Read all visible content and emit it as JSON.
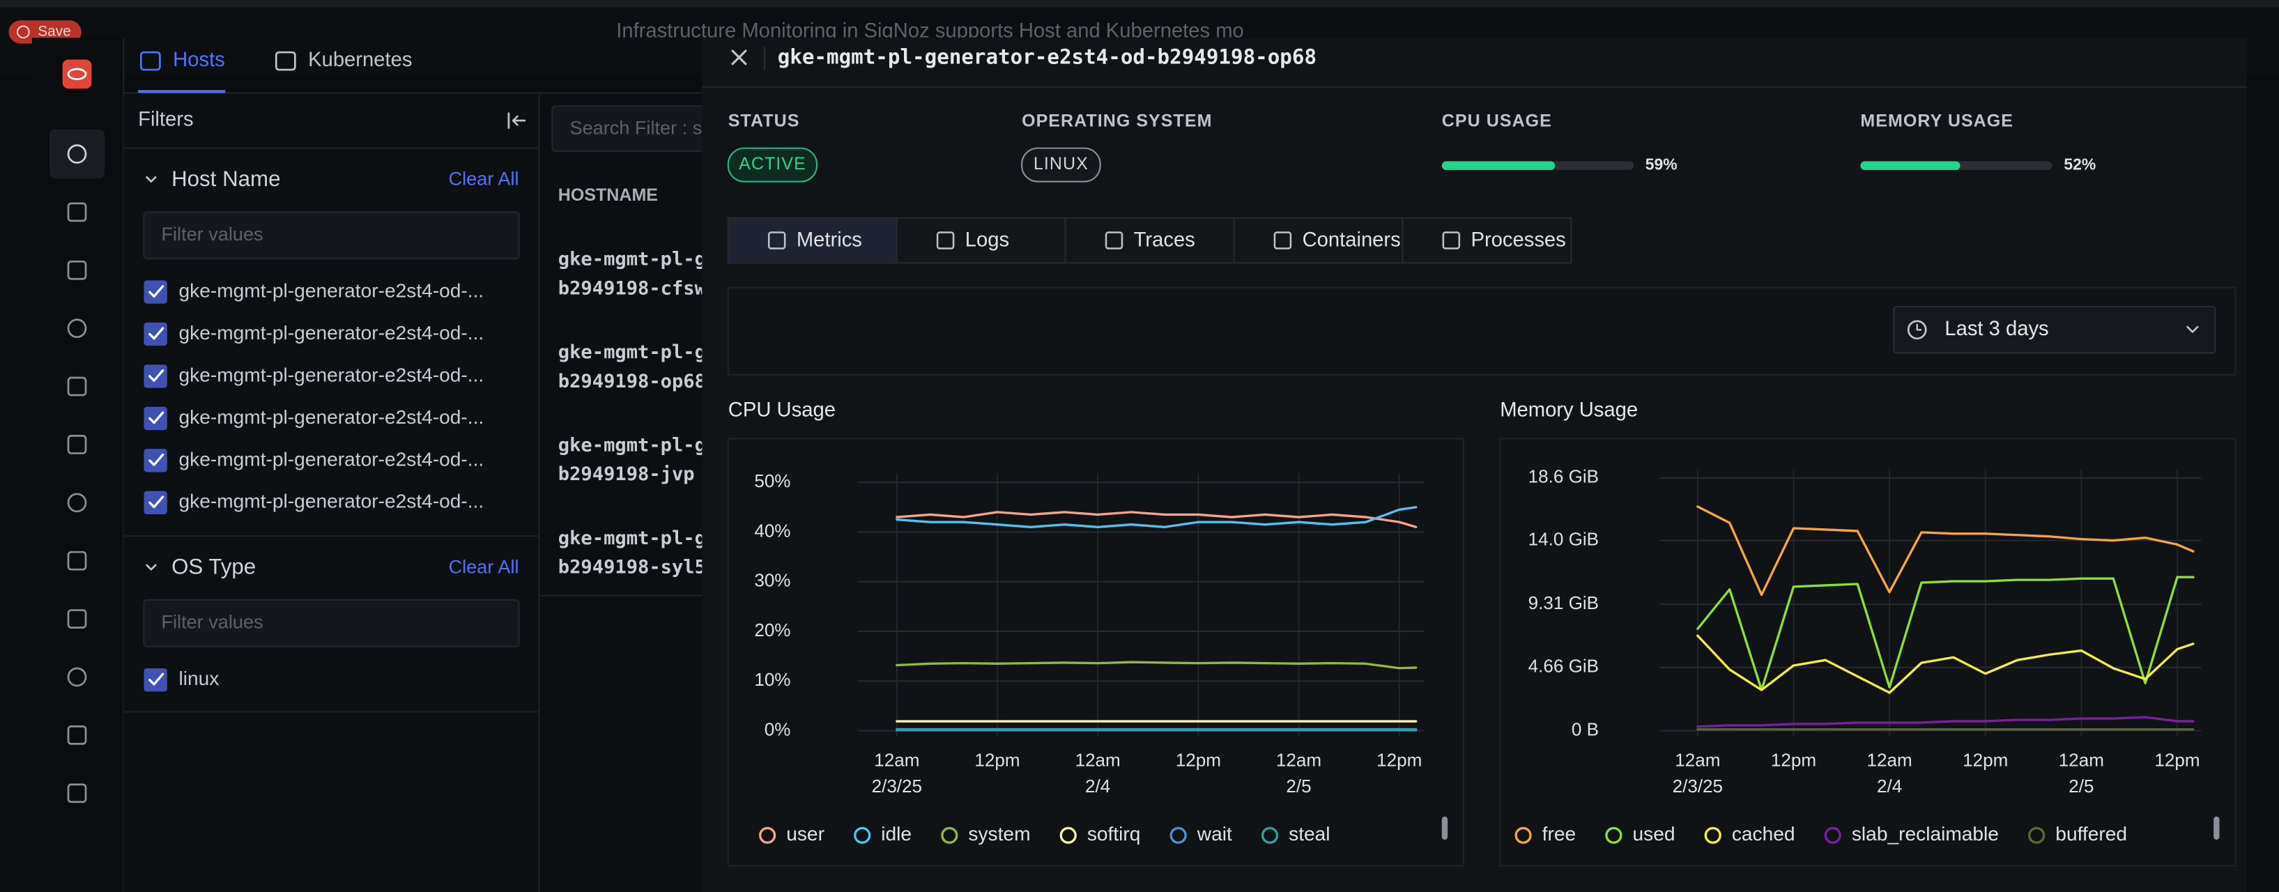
{
  "top_bar": {
    "save": "Save",
    "banner": "Infrastructure Monitoring in SigNoz supports Host and Kubernetes mo"
  },
  "nav": {
    "tabs": [
      "Hosts",
      "Kubernetes"
    ]
  },
  "filters": {
    "title": "Filters",
    "sections": [
      {
        "title": "Host Name",
        "clear": "Clear All",
        "placeholder": "Filter values",
        "items": [
          "gke-mgmt-pl-generator-e2st4-od-...",
          "gke-mgmt-pl-generator-e2st4-od-...",
          "gke-mgmt-pl-generator-e2st4-od-...",
          "gke-mgmt-pl-generator-e2st4-od-...",
          "gke-mgmt-pl-generator-e2st4-od-...",
          "gke-mgmt-pl-generator-e2st4-od-..."
        ]
      },
      {
        "title": "OS Type",
        "clear": "Clear All",
        "placeholder": "Filter values",
        "items": [
          "linux"
        ]
      }
    ]
  },
  "table": {
    "search": "Search Filter : s",
    "header": "HOSTNAME",
    "rows": [
      [
        "gke-mgmt-pl-g",
        "b2949198-cfsw"
      ],
      [
        "gke-mgmt-pl-g",
        "b2949198-op68"
      ],
      [
        "gke-mgmt-pl-g",
        "b2949198-jvp"
      ],
      [
        "gke-mgmt-pl-g",
        "b2949198-syl5"
      ]
    ]
  },
  "drawer": {
    "title": "gke-mgmt-pl-generator-e2st4-od-b2949198-op68",
    "status": {
      "label": "STATUS",
      "value": "ACTIVE"
    },
    "os": {
      "label": "OPERATING SYSTEM",
      "value": "LINUX"
    },
    "cpu_usage": {
      "label": "CPU USAGE",
      "value": 59,
      "value_label": "59%"
    },
    "memory_usage": {
      "label": "MEMORY USAGE",
      "value": 52,
      "value_label": "52%"
    },
    "tabs": [
      "Metrics",
      "Logs",
      "Traces",
      "Containers",
      "Processes"
    ],
    "time_range": "Last 3 days"
  },
  "chart_data": [
    {
      "type": "line",
      "title": "CPU Usage",
      "x": [
        "2025-02-03T00:00",
        "2025-02-03T04:00",
        "2025-02-03T08:00",
        "2025-02-03T12:00",
        "2025-02-03T16:00",
        "2025-02-03T20:00",
        "2025-02-04T00:00",
        "2025-02-04T04:00",
        "2025-02-04T08:00",
        "2025-02-04T12:00",
        "2025-02-04T16:00",
        "2025-02-04T20:00",
        "2025-02-05T00:00",
        "2025-02-05T04:00",
        "2025-02-05T08:00",
        "2025-02-05T12:00",
        "2025-02-05T14:00"
      ],
      "xlim": [
        "2025-02-02T20:00",
        "2025-02-05T15:00"
      ],
      "xticks": [
        {
          "value": "2025-02-03T00:00",
          "label": "12am 2/3/25"
        },
        {
          "value": "2025-02-03T12:00",
          "label": "12pm"
        },
        {
          "value": "2025-02-04T00:00",
          "label": "12am 2/4"
        },
        {
          "value": "2025-02-04T12:00",
          "label": "12pm"
        },
        {
          "value": "2025-02-05T00:00",
          "label": "12am 2/5"
        },
        {
          "value": "2025-02-05T12:00",
          "label": "12pm"
        }
      ],
      "ylim": [
        0,
        50
      ],
      "yticks": [
        {
          "value": 0,
          "label": "0%"
        },
        {
          "value": 10,
          "label": "10%"
        },
        {
          "value": 20,
          "label": "20%"
        },
        {
          "value": 30,
          "label": "30%"
        },
        {
          "value": 40,
          "label": "40%"
        },
        {
          "value": 50,
          "label": "50%"
        }
      ],
      "grid": true,
      "series": [
        {
          "name": "user",
          "color": "#f4a58a",
          "values": [
            43,
            43.5,
            43,
            44,
            43.5,
            44,
            43.5,
            44,
            43.5,
            43.5,
            43,
            43.5,
            43,
            43.5,
            43,
            42,
            41
          ]
        },
        {
          "name": "idle",
          "color": "#4fc3f7",
          "values": [
            42.5,
            42,
            42,
            41.5,
            41,
            41.5,
            41,
            41.5,
            41,
            42,
            42,
            41.5,
            42,
            41.5,
            42,
            44.5,
            45
          ]
        },
        {
          "name": "system",
          "color": "#8fbc3a",
          "values": [
            13.2,
            13.5,
            13.6,
            13.5,
            13.6,
            13.7,
            13.6,
            13.8,
            13.7,
            13.6,
            13.7,
            13.6,
            13.5,
            13.6,
            13.5,
            12.6,
            12.7
          ]
        },
        {
          "name": "softirq",
          "color": "#fff59d",
          "values": [
            1.9,
            1.9,
            1.9,
            1.9,
            1.9,
            1.9,
            1.9,
            1.9,
            1.9,
            1.9,
            1.9,
            1.9,
            1.9,
            1.9,
            1.9,
            1.9,
            1.9
          ]
        },
        {
          "name": "wait",
          "color": "#4a90d9",
          "values": [
            0.1,
            0.1,
            0.1,
            0.1,
            0.1,
            0.1,
            0.1,
            0.1,
            0.1,
            0.1,
            0.1,
            0.1,
            0.1,
            0.1,
            0.1,
            0.1,
            0.1
          ]
        },
        {
          "name": "steal",
          "color": "#26a69a",
          "values": [
            0.3,
            0.3,
            0.3,
            0.3,
            0.3,
            0.3,
            0.3,
            0.3,
            0.3,
            0.3,
            0.3,
            0.3,
            0.3,
            0.3,
            0.3,
            0.3,
            0.3
          ]
        }
      ]
    },
    {
      "type": "line",
      "title": "Memory Usage",
      "x": [
        "2025-02-03T00:00",
        "2025-02-03T04:00",
        "2025-02-03T08:00",
        "2025-02-03T12:00",
        "2025-02-03T16:00",
        "2025-02-03T20:00",
        "2025-02-04T00:00",
        "2025-02-04T04:00",
        "2025-02-04T08:00",
        "2025-02-04T12:00",
        "2025-02-04T16:00",
        "2025-02-04T20:00",
        "2025-02-05T00:00",
        "2025-02-05T04:00",
        "2025-02-05T08:00",
        "2025-02-05T12:00",
        "2025-02-05T14:00"
      ],
      "xlim": [
        "2025-02-02T20:00",
        "2025-02-05T15:00"
      ],
      "xticks": [
        {
          "value": "2025-02-03T00:00",
          "label": "12am 2/3/25"
        },
        {
          "value": "2025-02-03T12:00",
          "label": "12pm"
        },
        {
          "value": "2025-02-04T00:00",
          "label": "12am 2/4"
        },
        {
          "value": "2025-02-04T12:00",
          "label": "12pm"
        },
        {
          "value": "2025-02-05T00:00",
          "label": "12am 2/5"
        },
        {
          "value": "2025-02-05T12:00",
          "label": "12pm"
        }
      ],
      "ylim": [
        0,
        18.6
      ],
      "yticks": [
        {
          "value": 0,
          "label": "0 B"
        },
        {
          "value": 4.66,
          "label": "4.66 GiB"
        },
        {
          "value": 9.31,
          "label": "9.31 GiB"
        },
        {
          "value": 14.0,
          "label": "14.0 GiB"
        },
        {
          "value": 18.6,
          "label": "18.6 GiB"
        }
      ],
      "grid": true,
      "series": [
        {
          "name": "free",
          "color": "#f5a83c",
          "values": [
            16.5,
            15.3,
            10.0,
            14.9,
            14.8,
            14.7,
            10.2,
            14.6,
            14.5,
            14.5,
            14.4,
            14.3,
            14.1,
            14.0,
            14.2,
            13.7,
            13.2
          ]
        },
        {
          "name": "used",
          "color": "#8ae22e",
          "values": [
            7.5,
            10.4,
            3.0,
            10.6,
            10.7,
            10.8,
            3.2,
            10.9,
            11.0,
            11.0,
            11.1,
            11.1,
            11.2,
            11.2,
            3.5,
            11.3,
            11.3
          ]
        },
        {
          "name": "cached",
          "color": "#f5f03c",
          "values": [
            7.0,
            4.5,
            3.0,
            4.8,
            5.2,
            4.0,
            2.8,
            5.0,
            5.4,
            4.2,
            5.2,
            5.6,
            5.9,
            4.6,
            3.8,
            6.0,
            6.4
          ]
        },
        {
          "name": "slab_reclaimable",
          "color": "#7b1fa2",
          "values": [
            0.3,
            0.4,
            0.4,
            0.5,
            0.5,
            0.6,
            0.6,
            0.6,
            0.7,
            0.7,
            0.8,
            0.8,
            0.9,
            0.9,
            1.0,
            0.7,
            0.7
          ]
        },
        {
          "name": "buffered",
          "color": "#5b6b2f",
          "values": [
            0.1,
            0.1,
            0.1,
            0.1,
            0.1,
            0.1,
            0.1,
            0.1,
            0.1,
            0.1,
            0.1,
            0.1,
            0.1,
            0.1,
            0.1,
            0.1,
            0.1
          ]
        }
      ]
    }
  ]
}
